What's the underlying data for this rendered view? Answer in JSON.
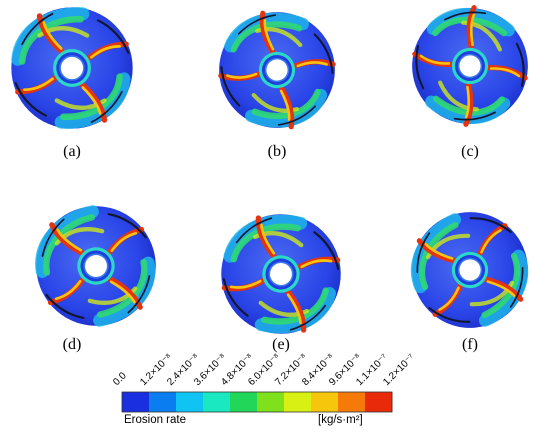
{
  "panels": [
    {
      "label": "(a)",
      "rotation": 0
    },
    {
      "label": "(b)",
      "rotation": 18
    },
    {
      "label": "(c)",
      "rotation": 36
    },
    {
      "label": "(d)",
      "rotation": -15
    },
    {
      "label": "(e)",
      "rotation": 10
    },
    {
      "label": "(f)",
      "rotation": -28
    }
  ],
  "colorbar": {
    "ticks": [
      "0.0",
      "1.2×10⁻⁸",
      "2.4×10⁻⁸",
      "3.6×10⁻⁸",
      "4.8×10⁻⁸",
      "6.0×10⁻⁸",
      "7.2×10⁻⁸",
      "8.4×10⁻⁸",
      "9.6×10⁻⁸",
      "1.1×10⁻⁷",
      "1.2×10⁻⁷"
    ],
    "colors": [
      "#1a2fe0",
      "#0a7ef0",
      "#0fc4f2",
      "#19e8c0",
      "#22d65a",
      "#7fe11c",
      "#d8f014",
      "#f5c60c",
      "#f57a0a",
      "#e82a0a"
    ],
    "title": "Erosion rate",
    "unit": "[kg/s·m²]"
  }
}
